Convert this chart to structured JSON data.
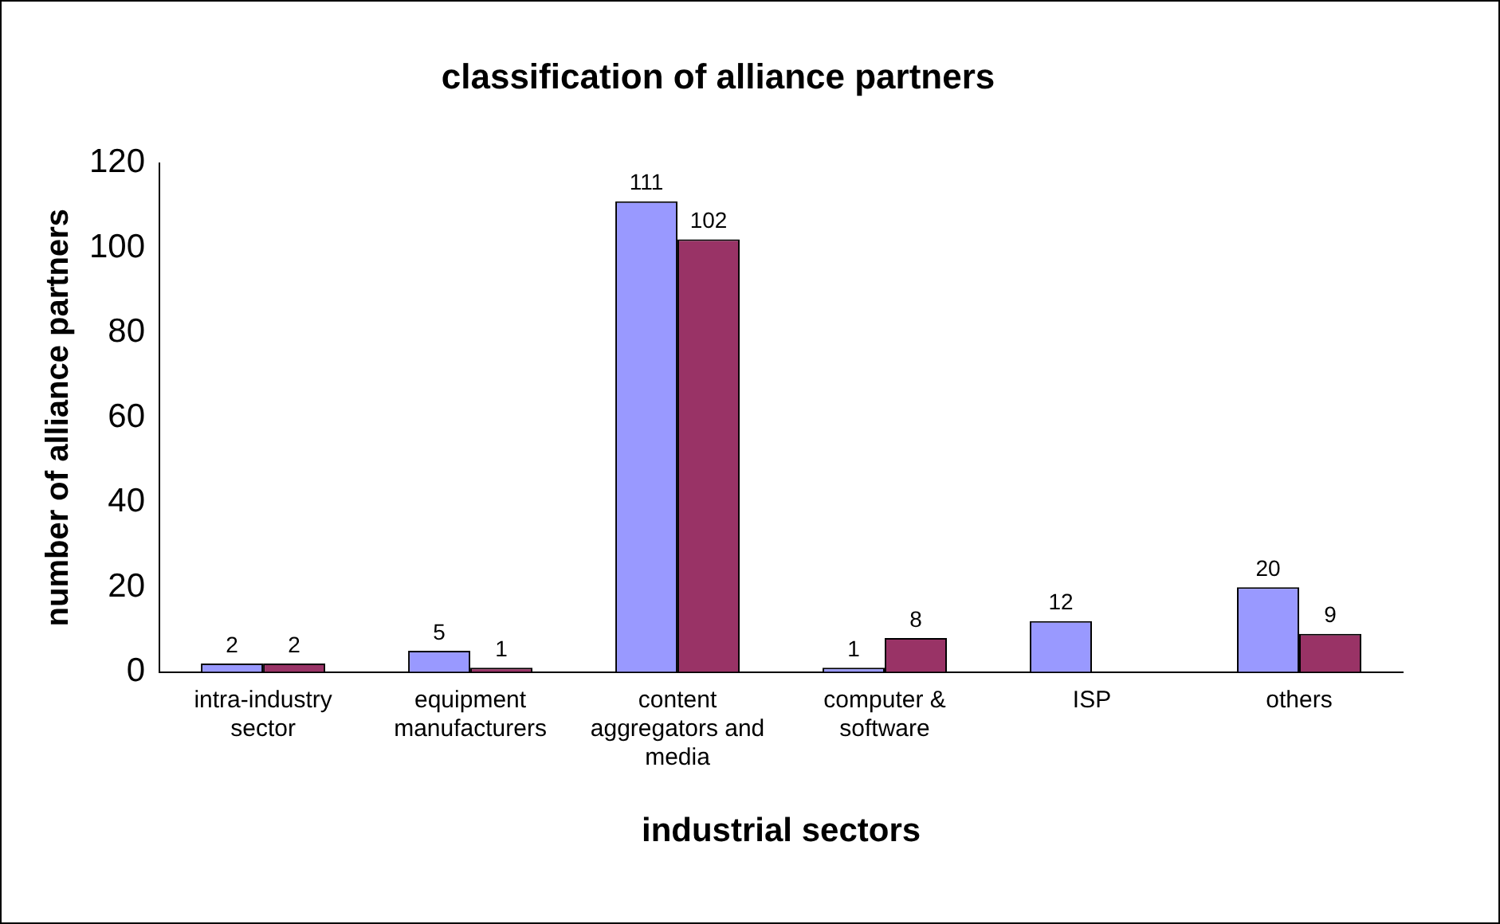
{
  "chart_data": {
    "type": "bar",
    "title": "classification of alliance partners",
    "xlabel": "industrial sectors",
    "ylabel": "number of alliance partners",
    "categories": [
      "intra-industry sector",
      "equipment manufacturers",
      "content aggregators and media",
      "computer & software",
      "ISP",
      "others"
    ],
    "series": [
      {
        "color": "#9999ff",
        "values": [
          2,
          5,
          111,
          1,
          12,
          20
        ]
      },
      {
        "color": "#993366",
        "values": [
          2,
          1,
          102,
          8,
          null,
          9
        ]
      }
    ],
    "ylim": [
      0,
      120
    ],
    "yticks": [
      0,
      20,
      40,
      60,
      80,
      100,
      120
    ],
    "grid": false,
    "legend": false,
    "data_labels": true
  }
}
